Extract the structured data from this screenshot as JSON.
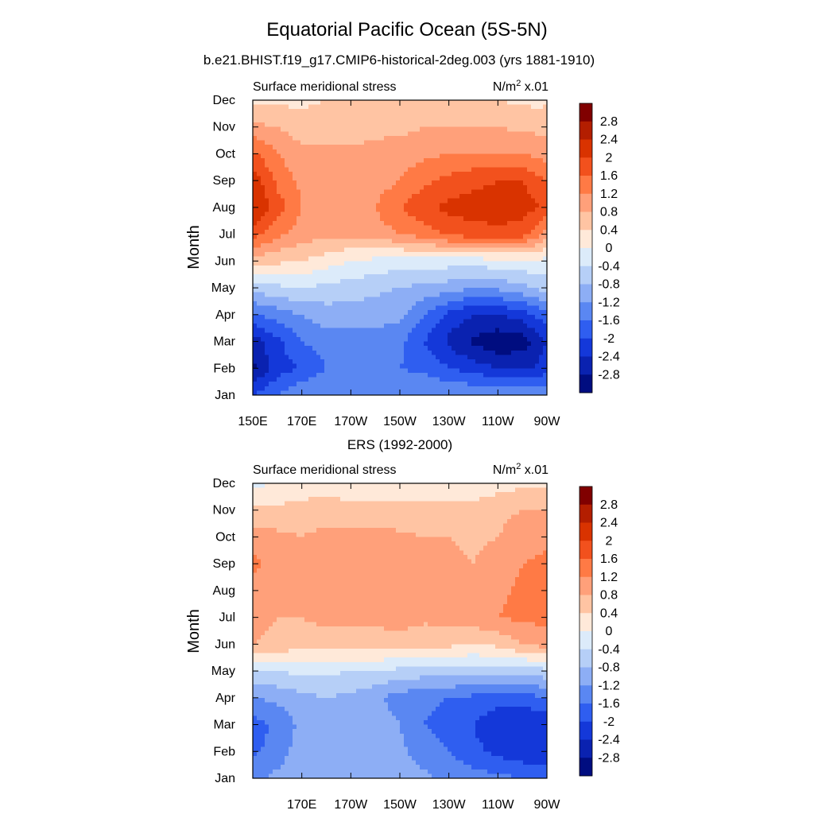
{
  "figure": {
    "title": "Equatorial Pacific Ocean (5S-5N)",
    "subtitle": "b.e21.BHIST.f19_g17.CMIP6-historical-2deg.003 (yrs 1881-1910)"
  },
  "colorbar": {
    "levels": [
      -2.8,
      -2.4,
      -2.0,
      -1.6,
      -1.2,
      -0.8,
      -0.4,
      0,
      0.4,
      0.8,
      1.2,
      1.6,
      2.0,
      2.4,
      2.8
    ],
    "labels": [
      "2.8",
      "2.4",
      "2",
      "1.6",
      "1.2",
      "0.8",
      "0.4",
      "0",
      "-0.4",
      "-0.8",
      "-1.2",
      "-1.6",
      "-2",
      "-2.4",
      "-2.8"
    ],
    "colors": [
      "#800000",
      "#b31e00",
      "#d93300",
      "#f2511d",
      "#ff7a45",
      "#ffa07a",
      "#ffc4a3",
      "#ffe9d9",
      "#dcebfa",
      "#b6cff7",
      "#8daef5",
      "#5a87f2",
      "#2f5ef0",
      "#1438d9",
      "#0a22b0",
      "#000d80"
    ]
  },
  "chart_data": [
    {
      "type": "heatmap",
      "panel_title": "",
      "left_label": "Surface meridional stress",
      "units_label": "N/m",
      "units_sup": "2",
      "units_suffix": " x.01",
      "ylabel": "Month",
      "y_ticks": [
        "Jan",
        "Feb",
        "Mar",
        "Apr",
        "May",
        "Jun",
        "Jul",
        "Aug",
        "Sep",
        "Oct",
        "Nov",
        "Dec"
      ],
      "x_ticks": [
        "150E",
        "170E",
        "170W",
        "150W",
        "130W",
        "110W",
        "90W"
      ],
      "x_tick_values": [
        150,
        170,
        190,
        210,
        230,
        250,
        270
      ],
      "xlim": [
        150,
        270
      ],
      "ylim": [
        1,
        12
      ],
      "x": [
        150,
        160,
        170,
        180,
        190,
        200,
        210,
        220,
        230,
        240,
        250,
        260,
        270
      ],
      "months": [
        1,
        2,
        3,
        4,
        5,
        6,
        7,
        8,
        9,
        10,
        11,
        12
      ],
      "values": [
        [
          -2.0,
          -1.6,
          -1.2,
          -1.2,
          -1.2,
          -1.2,
          -1.2,
          -1.2,
          -1.2,
          -1.2,
          -1.2,
          -1.2,
          -1.2
        ],
        [
          -2.9,
          -2.2,
          -2.0,
          -1.6,
          -1.6,
          -1.6,
          -1.6,
          -1.7,
          -2.0,
          -2.2,
          -2.4,
          -2.5,
          -2.2
        ],
        [
          -2.6,
          -2.1,
          -1.6,
          -1.4,
          -1.4,
          -1.4,
          -1.5,
          -2.0,
          -2.5,
          -2.9,
          -3.1,
          -3.0,
          -2.4
        ],
        [
          -1.7,
          -1.4,
          -1.2,
          -1.0,
          -1.0,
          -1.0,
          -1.1,
          -1.6,
          -2.1,
          -2.4,
          -2.4,
          -2.2,
          -1.7
        ],
        [
          -0.6,
          -0.5,
          -0.4,
          -0.5,
          -0.6,
          -0.7,
          -0.8,
          -0.9,
          -1.0,
          -1.2,
          -1.1,
          -0.9,
          -0.6
        ],
        [
          0.6,
          0.5,
          0.4,
          0.2,
          0.0,
          -0.1,
          -0.2,
          -0.2,
          -0.2,
          -0.2,
          -0.1,
          -0.1,
          -0.1
        ],
        [
          1.8,
          1.3,
          1.0,
          0.9,
          0.9,
          1.0,
          1.2,
          1.4,
          1.7,
          1.8,
          1.9,
          1.8,
          1.0
        ],
        [
          2.4,
          1.8,
          1.2,
          1.1,
          1.1,
          1.2,
          1.6,
          1.9,
          2.1,
          2.2,
          2.2,
          2.2,
          1.9
        ],
        [
          2.3,
          1.5,
          1.1,
          1.0,
          1.0,
          1.0,
          1.2,
          1.5,
          1.7,
          1.9,
          2.0,
          2.0,
          1.6
        ],
        [
          1.7,
          1.2,
          0.9,
          0.9,
          0.9,
          0.9,
          1.0,
          1.1,
          1.2,
          1.2,
          1.2,
          1.2,
          1.0
        ],
        [
          0.9,
          0.8,
          0.6,
          0.6,
          0.6,
          0.7,
          0.7,
          0.8,
          0.8,
          0.8,
          0.8,
          0.7,
          0.7
        ],
        [
          0.3,
          0.3,
          0.3,
          0.4,
          0.4,
          0.4,
          0.4,
          0.4,
          0.4,
          0.4,
          0.4,
          0.3,
          0.3
        ]
      ]
    },
    {
      "type": "heatmap",
      "panel_title": "ERS (1992-2000)",
      "left_label": "Surface meridional stress",
      "units_label": "N/m",
      "units_sup": "2",
      "units_suffix": " x.01",
      "ylabel": "Month",
      "y_ticks": [
        "Jan",
        "Feb",
        "Mar",
        "Apr",
        "May",
        "Jun",
        "Jul",
        "Aug",
        "Sep",
        "Oct",
        "Nov",
        "Dec"
      ],
      "x_ticks": [
        "170E",
        "170W",
        "150W",
        "130W",
        "110W",
        "90W"
      ],
      "x_tick_values": [
        170,
        190,
        210,
        230,
        250,
        270
      ],
      "xlim": [
        150,
        270
      ],
      "ylim": [
        1,
        12
      ],
      "x": [
        150,
        160,
        170,
        180,
        190,
        200,
        210,
        220,
        230,
        240,
        250,
        260,
        270
      ],
      "months": [
        1,
        2,
        3,
        4,
        5,
        6,
        7,
        8,
        9,
        10,
        11,
        12
      ],
      "values": [
        [
          -1.3,
          -1.1,
          -0.9,
          -0.8,
          -0.8,
          -0.8,
          -1.0,
          -1.1,
          -1.3,
          -1.4,
          -1.5,
          -1.6,
          -1.7
        ],
        [
          -1.7,
          -1.4,
          -1.0,
          -0.9,
          -0.9,
          -1.0,
          -1.1,
          -1.4,
          -1.6,
          -1.9,
          -2.1,
          -2.3,
          -2.3
        ],
        [
          -1.8,
          -1.5,
          -1.1,
          -0.9,
          -1.0,
          -1.0,
          -1.2,
          -1.6,
          -1.8,
          -2.0,
          -2.3,
          -2.4,
          -2.3
        ],
        [
          -1.2,
          -1.1,
          -0.9,
          -0.8,
          -0.9,
          -1.1,
          -1.4,
          -1.5,
          -1.6,
          -1.7,
          -1.8,
          -1.8,
          -1.6
        ],
        [
          -0.4,
          -0.4,
          -0.3,
          -0.3,
          -0.4,
          -0.4,
          -0.5,
          -0.6,
          -0.6,
          -0.6,
          -0.6,
          -0.6,
          -0.5
        ],
        [
          0.8,
          0.7,
          0.6,
          0.6,
          0.6,
          0.6,
          0.6,
          0.5,
          0.5,
          0.4,
          0.5,
          0.8,
          1.0
        ],
        [
          0.9,
          0.8,
          0.8,
          0.9,
          0.9,
          0.9,
          1.0,
          0.9,
          0.9,
          1.0,
          1.2,
          1.3,
          1.3
        ],
        [
          1.0,
          0.9,
          0.9,
          1.0,
          0.9,
          0.9,
          1.0,
          0.9,
          0.9,
          0.9,
          1.1,
          1.3,
          1.3
        ],
        [
          1.3,
          1.1,
          0.9,
          1.0,
          1.0,
          1.0,
          1.0,
          1.0,
          0.9,
          0.8,
          1.0,
          1.2,
          1.3
        ],
        [
          1.0,
          0.9,
          0.8,
          0.9,
          1.0,
          0.9,
          0.9,
          0.8,
          0.8,
          0.7,
          0.8,
          1.0,
          1.1
        ],
        [
          0.5,
          0.5,
          0.6,
          0.6,
          0.5,
          0.5,
          0.5,
          0.5,
          0.5,
          0.5,
          0.7,
          0.8,
          0.8
        ],
        [
          -0.1,
          0.0,
          0.1,
          0.2,
          0.2,
          0.2,
          0.2,
          0.2,
          0.2,
          0.2,
          0.2,
          0.3,
          0.3
        ]
      ]
    }
  ]
}
